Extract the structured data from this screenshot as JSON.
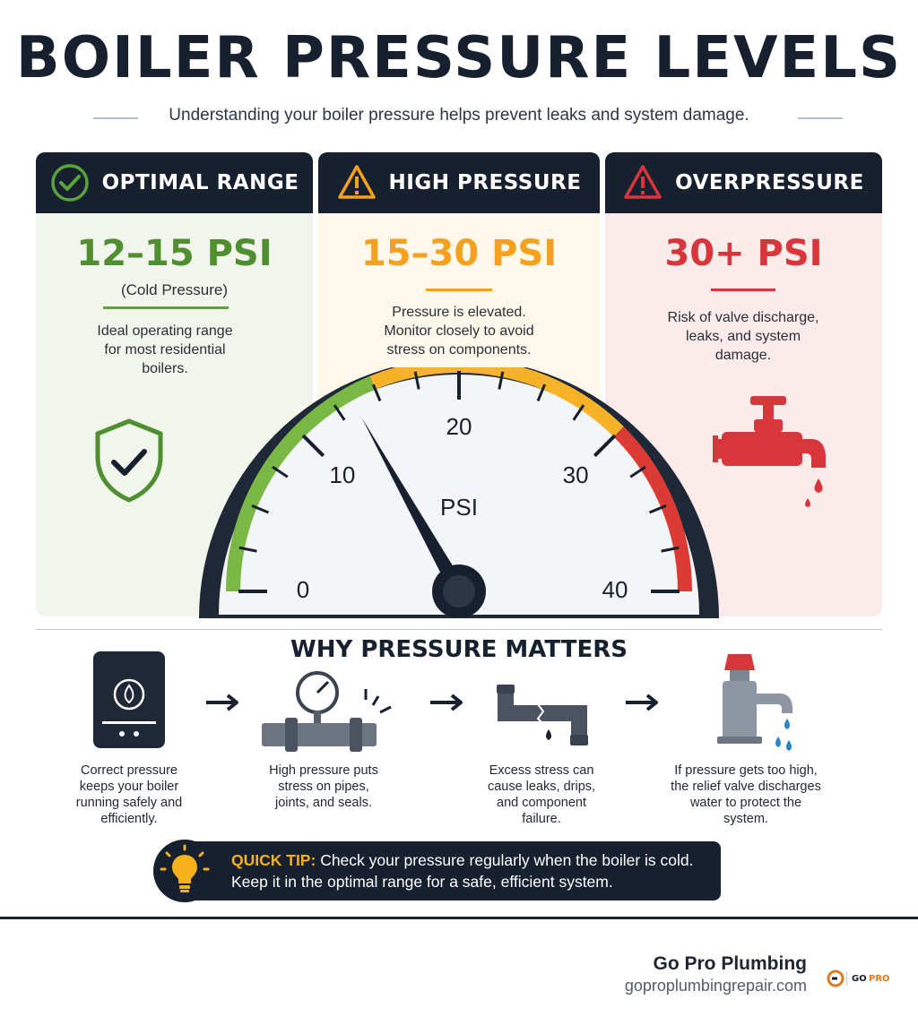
{
  "title": "BOILER PRESSURE LEVELS",
  "subtitle": "Understanding your boiler pressure helps prevent leaks and system damage.",
  "panels": {
    "optimal": {
      "heading": "OPTIMAL RANGE",
      "range": "12–15 PSI",
      "note": "(Cold Pressure)",
      "description": "Ideal operating range for most residential boilers.",
      "color": "#4f8f2f",
      "icon": "check-circle-icon"
    },
    "high": {
      "heading": "HIGH PRESSURE",
      "range": "15–30 PSI",
      "description": "Pressure is elevated. Monitor closely to avoid stress on components.",
      "color": "#f5a01f",
      "icon": "warning-triangle-icon"
    },
    "over": {
      "heading": "OVERPRESSURE",
      "range": "30+ PSI",
      "description": "Risk of valve discharge, leaks, and system damage.",
      "color": "#d8363a",
      "icon": "alert-triangle-icon"
    }
  },
  "gauge": {
    "unit": "PSI",
    "ticks": [
      "0",
      "10",
      "20",
      "30",
      "40"
    ],
    "min": 0,
    "max": 40,
    "needle_value": 13.5,
    "zones": [
      {
        "from": 0,
        "to": 15,
        "color": "#7ab845"
      },
      {
        "from": 15,
        "to": 30,
        "color": "#f6b229"
      },
      {
        "from": 30,
        "to": 40,
        "color": "#db3b35"
      }
    ]
  },
  "why": {
    "title": "WHY PRESSURE MATTERS",
    "steps": [
      {
        "text": "Correct pressure keeps your boiler running safely and efficiently.",
        "icon": "boiler-icon"
      },
      {
        "text": "High pressure puts stress on pipes, joints, and seals.",
        "icon": "pipe-gauge-icon"
      },
      {
        "text": "Excess stress can cause leaks, drips, and component failure.",
        "icon": "leaking-pipe-icon"
      },
      {
        "text": "If pressure gets too high, the relief valve discharges water to protect the system.",
        "icon": "relief-valve-icon"
      }
    ]
  },
  "tip": {
    "label": "QUICK TIP:",
    "line1": "Check your pressure regularly when the boiler is cold.",
    "line2": "Keep it in the optimal range for a safe, efficient system."
  },
  "footer": {
    "company": "Go Pro Plumbing",
    "website": "goproplumbingrepair.com",
    "logo_text": "GO PRO"
  }
}
